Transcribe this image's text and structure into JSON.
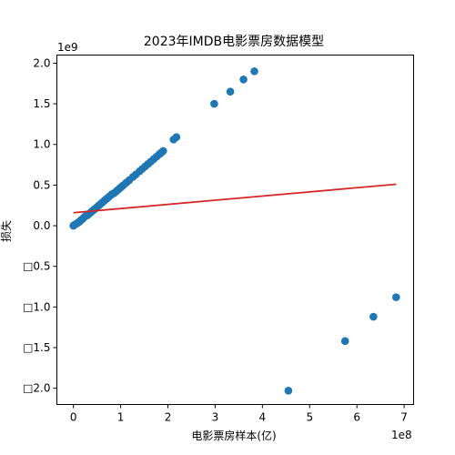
{
  "chart_data": {
    "type": "scatter",
    "title": "2023年IMDB电影票房数据模型",
    "xlabel": "电影票房样本(亿)",
    "ylabel": "损失",
    "x_offset_label": "1e8",
    "y_offset_label": "1e9",
    "xlim": [
      -0.35,
      7.2
    ],
    "ylim": [
      -2.2,
      2.1
    ],
    "xticks": [
      {
        "value": 0,
        "label": "0"
      },
      {
        "value": 1,
        "label": "1"
      },
      {
        "value": 2,
        "label": "2"
      },
      {
        "value": 3,
        "label": "3"
      },
      {
        "value": 4,
        "label": "4"
      },
      {
        "value": 5,
        "label": "5"
      },
      {
        "value": 6,
        "label": "6"
      },
      {
        "value": 7,
        "label": "7"
      }
    ],
    "yticks": [
      {
        "value": 2.0,
        "label": "2.0"
      },
      {
        "value": 1.5,
        "label": "1.5"
      },
      {
        "value": 1.0,
        "label": "1.0"
      },
      {
        "value": 0.5,
        "label": "0.5"
      },
      {
        "value": 0.0,
        "label": "0.0"
      },
      {
        "value": -0.5,
        "label": "□0.5"
      },
      {
        "value": -1.0,
        "label": "□1.0"
      },
      {
        "value": -1.5,
        "label": "□1.5"
      },
      {
        "value": -2.0,
        "label": "□2.0"
      }
    ],
    "grid": false,
    "series": [
      {
        "type": "scatter",
        "color": "#1f77b4",
        "points": [
          [
            0.0,
            0.0
          ],
          [
            0.02,
            0.01
          ],
          [
            0.05,
            0.02
          ],
          [
            0.08,
            0.03
          ],
          [
            0.1,
            0.04
          ],
          [
            0.13,
            0.05
          ],
          [
            0.16,
            0.07
          ],
          [
            0.19,
            0.08
          ],
          [
            0.22,
            0.1
          ],
          [
            0.26,
            0.12
          ],
          [
            0.3,
            0.13
          ],
          [
            0.34,
            0.15
          ],
          [
            0.38,
            0.17
          ],
          [
            0.42,
            0.19
          ],
          [
            0.46,
            0.21
          ],
          [
            0.5,
            0.23
          ],
          [
            0.54,
            0.25
          ],
          [
            0.58,
            0.27
          ],
          [
            0.62,
            0.29
          ],
          [
            0.66,
            0.31
          ],
          [
            0.7,
            0.33
          ],
          [
            0.74,
            0.35
          ],
          [
            0.78,
            0.37
          ],
          [
            0.82,
            0.39
          ],
          [
            0.86,
            0.4
          ],
          [
            0.9,
            0.42
          ],
          [
            0.94,
            0.44
          ],
          [
            0.98,
            0.46
          ],
          [
            1.02,
            0.48
          ],
          [
            1.06,
            0.5
          ],
          [
            1.12,
            0.53
          ],
          [
            1.18,
            0.56
          ],
          [
            1.26,
            0.6
          ],
          [
            1.32,
            0.63
          ],
          [
            1.4,
            0.67
          ],
          [
            1.46,
            0.7
          ],
          [
            1.52,
            0.73
          ],
          [
            1.58,
            0.76
          ],
          [
            1.64,
            0.79
          ],
          [
            1.7,
            0.82
          ],
          [
            1.76,
            0.85
          ],
          [
            1.82,
            0.88
          ],
          [
            1.86,
            0.9
          ],
          [
            1.9,
            0.92
          ],
          [
            2.12,
            1.06
          ],
          [
            2.18,
            1.09
          ],
          [
            2.98,
            1.5
          ],
          [
            3.32,
            1.65
          ],
          [
            3.6,
            1.8
          ],
          [
            3.83,
            1.9
          ],
          [
            4.55,
            -2.03
          ],
          [
            5.75,
            -1.42
          ],
          [
            6.35,
            -1.12
          ],
          [
            6.83,
            -0.88
          ]
        ]
      },
      {
        "type": "line",
        "color": "#d62728",
        "points": [
          [
            0.0,
            0.16
          ],
          [
            6.83,
            0.51
          ]
        ]
      }
    ]
  }
}
